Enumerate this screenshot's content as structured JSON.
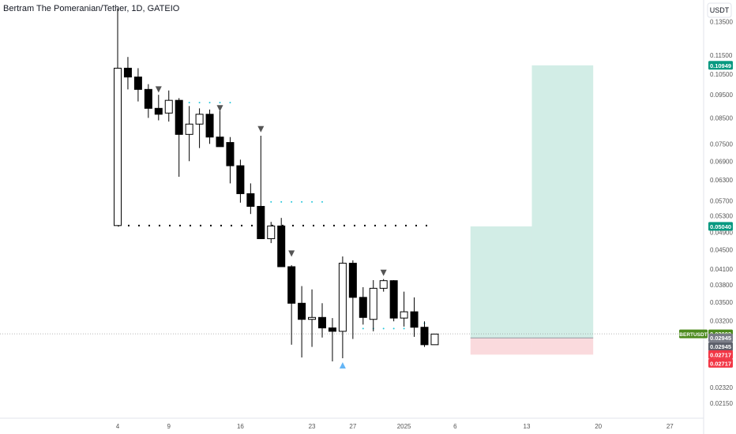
{
  "header": {
    "title": "Bertram The Pomeranian/Tether, 1D, GATEIO"
  },
  "currency_button": {
    "label": "USDT"
  },
  "colors": {
    "bull_body": "#ffffff",
    "bear_body": "#000000",
    "profit_zone": "#d2ede6",
    "loss_zone": "#fadadd",
    "green_tag": "#089981",
    "red_tag": "#f23645",
    "symbol_tag": "#4c8a1d",
    "gray_tag": "#787b86",
    "dark_gray_tag": "#5d606b",
    "cyan_dots": "#26c6da",
    "up_arrow": "#64b5f6",
    "down_arrow": "#555555"
  },
  "chart_data": {
    "type": "candlestick",
    "title": "Bertram The Pomeranian/Tether, 1D, GATEIO",
    "y_axis": {
      "scale": "log",
      "range": [
        0.02,
        0.15
      ],
      "ticks": [
        "0.13500",
        "0.11500",
        "0.10500",
        "0.09500",
        "0.08500",
        "0.07500",
        "0.06900",
        "0.06300",
        "0.05700",
        "0.05300",
        "0.04900",
        "0.04500",
        "0.04100",
        "0.03800",
        "0.03500",
        "0.03200",
        "0.02930",
        "0.02640",
        "0.02320",
        "0.02150"
      ]
    },
    "x_axis": {
      "unit": "day",
      "first_index": 1,
      "last_index": 53,
      "ticks": [
        {
          "label": "4",
          "i": 4
        },
        {
          "label": "9",
          "i": 9
        },
        {
          "label": "16",
          "i": 16
        },
        {
          "label": "23",
          "i": 23
        },
        {
          "label": "27",
          "i": 27
        },
        {
          "label": "2025",
          "i": 32
        },
        {
          "label": "6",
          "i": 37
        },
        {
          "label": "13",
          "i": 44
        },
        {
          "label": "20",
          "i": 51
        },
        {
          "label": "27",
          "i": 58
        }
      ]
    },
    "candles": [
      {
        "i": 4,
        "o": 0.0506,
        "h": 0.144,
        "l": 0.0506,
        "c": 0.108
      },
      {
        "i": 5,
        "o": 0.108,
        "h": 0.114,
        "l": 0.0975,
        "c": 0.1035
      },
      {
        "i": 6,
        "o": 0.1035,
        "h": 0.108,
        "l": 0.092,
        "c": 0.0975
      },
      {
        "i": 7,
        "o": 0.0975,
        "h": 0.1,
        "l": 0.085,
        "c": 0.089
      },
      {
        "i": 8,
        "o": 0.089,
        "h": 0.095,
        "l": 0.084,
        "c": 0.0865
      },
      {
        "i": 9,
        "o": 0.087,
        "h": 0.097,
        "l": 0.0835,
        "c": 0.0925
      },
      {
        "i": 10,
        "o": 0.0925,
        "h": 0.0935,
        "l": 0.064,
        "c": 0.0785
      },
      {
        "i": 11,
        "o": 0.0785,
        "h": 0.09,
        "l": 0.069,
        "c": 0.0825
      },
      {
        "i": 12,
        "o": 0.0825,
        "h": 0.089,
        "l": 0.0735,
        "c": 0.0865
      },
      {
        "i": 13,
        "o": 0.0865,
        "h": 0.0885,
        "l": 0.075,
        "c": 0.0775
      },
      {
        "i": 14,
        "o": 0.0775,
        "h": 0.088,
        "l": 0.075,
        "c": 0.074
      },
      {
        "i": 15,
        "o": 0.0755,
        "h": 0.0775,
        "l": 0.062,
        "c": 0.0675
      },
      {
        "i": 16,
        "o": 0.0675,
        "h": 0.0695,
        "l": 0.0565,
        "c": 0.059
      },
      {
        "i": 17,
        "o": 0.059,
        "h": 0.062,
        "l": 0.0535,
        "c": 0.0555
      },
      {
        "i": 18,
        "o": 0.0555,
        "h": 0.078,
        "l": 0.0475,
        "c": 0.0475
      },
      {
        "i": 19,
        "o": 0.0475,
        "h": 0.0515,
        "l": 0.0465,
        "c": 0.0505
      },
      {
        "i": 20,
        "o": 0.0505,
        "h": 0.0525,
        "l": 0.0415,
        "c": 0.0415
      },
      {
        "i": 21,
        "o": 0.0415,
        "h": 0.0418,
        "l": 0.0285,
        "c": 0.0348
      },
      {
        "i": 22,
        "o": 0.0348,
        "h": 0.0378,
        "l": 0.0268,
        "c": 0.0322
      },
      {
        "i": 23,
        "o": 0.0322,
        "h": 0.0372,
        "l": 0.0282,
        "c": 0.0325
      },
      {
        "i": 24,
        "o": 0.0325,
        "h": 0.0348,
        "l": 0.0295,
        "c": 0.0309
      },
      {
        "i": 25,
        "o": 0.0309,
        "h": 0.0324,
        "l": 0.0263,
        "c": 0.0304
      },
      {
        "i": 26,
        "o": 0.0304,
        "h": 0.0436,
        "l": 0.0267,
        "c": 0.0422
      },
      {
        "i": 27,
        "o": 0.0422,
        "h": 0.0428,
        "l": 0.0293,
        "c": 0.0358
      },
      {
        "i": 28,
        "o": 0.0358,
        "h": 0.0376,
        "l": 0.0314,
        "c": 0.0325
      },
      {
        "i": 29,
        "o": 0.0322,
        "h": 0.0389,
        "l": 0.0304,
        "c": 0.0374
      },
      {
        "i": 30,
        "o": 0.0374,
        "h": 0.0391,
        "l": 0.0368,
        "c": 0.0388
      },
      {
        "i": 31,
        "o": 0.0388,
        "h": 0.0389,
        "l": 0.0319,
        "c": 0.0324
      },
      {
        "i": 32,
        "o": 0.0324,
        "h": 0.0368,
        "l": 0.0311,
        "c": 0.0334
      },
      {
        "i": 33,
        "o": 0.0334,
        "h": 0.0358,
        "l": 0.0296,
        "c": 0.031
      },
      {
        "i": 34,
        "o": 0.031,
        "h": 0.0319,
        "l": 0.0282,
        "c": 0.0285
      },
      {
        "i": 35,
        "o": 0.0285,
        "h": 0.03,
        "l": 0.0285,
        "c": 0.03
      }
    ],
    "levels": [
      {
        "name": "support-dotted",
        "value": 0.0506,
        "from_i": 4,
        "to_i": 35
      },
      {
        "name": "current-price-line",
        "value": 0.03003,
        "from_i": 1,
        "to_i": 62
      }
    ],
    "dot_lines": [
      {
        "value": 0.0915,
        "from_i": 10,
        "to_i": 15
      },
      {
        "value": 0.0567,
        "from_i": 19,
        "to_i": 24
      },
      {
        "value": 0.0308,
        "from_i": 28,
        "to_i": 32
      },
      {
        "value": 0.0316,
        "from_i": 34,
        "to_i": 34
      }
    ],
    "markers": [
      {
        "i": 8,
        "value": 0.0975,
        "shape": "triangle-down"
      },
      {
        "i": 14,
        "value": 0.089,
        "shape": "triangle-down"
      },
      {
        "i": 18,
        "value": 0.0805,
        "shape": "triangle-down"
      },
      {
        "i": 21,
        "value": 0.0442,
        "shape": "triangle-down"
      },
      {
        "i": 30,
        "value": 0.0403,
        "shape": "triangle-up-inverse"
      },
      {
        "i": 26,
        "value": 0.0258,
        "shape": "triangle-up"
      }
    ],
    "positions": [
      {
        "from_i": 39,
        "to_i": 44,
        "entry": 0.02945,
        "target": 0.0504,
        "stop": 0.02717
      },
      {
        "from_i": 45,
        "to_i": 50,
        "entry": 0.02945,
        "target": 0.10949,
        "stop": 0.02717
      }
    ],
    "price_tags": [
      {
        "value": 0.10949,
        "text": "0.10949",
        "color": "#089981"
      },
      {
        "value": 0.0504,
        "text": "0.05040",
        "color": "#089981"
      },
      {
        "value": 0.03003,
        "text": "0.03003",
        "color": "#4c8a1d",
        "symbol": "BERTUSDT"
      },
      {
        "value": 0.02945,
        "text": "0.02945",
        "color": "#787b86"
      },
      {
        "value": 0.02945,
        "text": "0.02945",
        "color": "#5d606b",
        "offset": 1
      },
      {
        "value": 0.02717,
        "text": "0.02717",
        "color": "#f23645"
      },
      {
        "value": 0.02717,
        "text": "0.02717",
        "color": "#f23645",
        "offset": 1
      }
    ]
  }
}
